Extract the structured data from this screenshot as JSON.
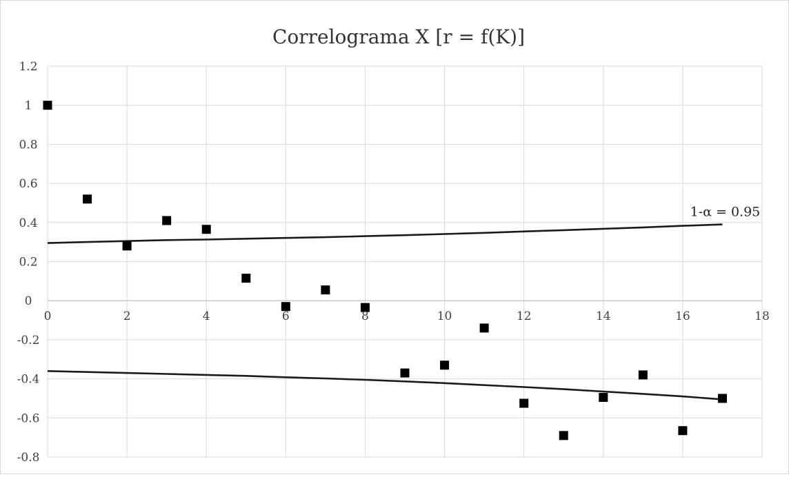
{
  "chart_data": {
    "type": "scatter",
    "title": "Correlograma X [r = f(K)]",
    "xlabel": "",
    "ylabel": "",
    "xlim": [
      0,
      18
    ],
    "ylim": [
      -0.8,
      1.2
    ],
    "xticks": [
      0,
      2,
      4,
      6,
      8,
      10,
      12,
      14,
      16,
      18
    ],
    "yticks": [
      -0.8,
      -0.6,
      -0.4,
      -0.2,
      0,
      0.2,
      0.4,
      0.6,
      0.8,
      1,
      1.2
    ],
    "ytick_labels": [
      "-0.8",
      "-0.6",
      "-0.4",
      "-0.2",
      "0",
      "0.2",
      "0.4",
      "0.6",
      "0.8",
      "1",
      "1.2"
    ],
    "grid": true,
    "legend": "none",
    "marker_color": "#000000",
    "line_color": "#1a1a1a",
    "series": [
      {
        "marker": "square",
        "x": [
          0,
          1,
          2,
          3,
          4,
          5,
          6,
          7,
          8,
          9,
          10,
          11,
          12,
          13,
          14,
          15,
          16,
          17
        ],
        "y": [
          1.0,
          0.52,
          0.28,
          0.41,
          0.365,
          0.115,
          -0.03,
          0.055,
          -0.035,
          -0.37,
          -0.33,
          -0.14,
          -0.525,
          -0.69,
          -0.495,
          -0.38,
          -0.665,
          -0.5
        ]
      },
      {
        "marker": "none",
        "x": [
          0,
          1,
          2,
          3,
          4,
          5,
          6,
          7,
          8,
          9,
          10,
          11,
          12,
          13,
          14,
          15,
          16,
          17
        ],
        "y": [
          0.295,
          0.3,
          0.305,
          0.31,
          0.313,
          0.317,
          0.321,
          0.325,
          0.33,
          0.335,
          0.341,
          0.347,
          0.354,
          0.361,
          0.368,
          0.375,
          0.383,
          0.39
        ]
      },
      {
        "marker": "none",
        "x": [
          0,
          1,
          2,
          3,
          4,
          5,
          6,
          7,
          8,
          9,
          10,
          11,
          12,
          13,
          14,
          15,
          16,
          17
        ],
        "y": [
          -0.36,
          -0.365,
          -0.37,
          -0.375,
          -0.38,
          -0.385,
          -0.392,
          -0.398,
          -0.405,
          -0.413,
          -0.422,
          -0.432,
          -0.442,
          -0.453,
          -0.465,
          -0.477,
          -0.49,
          -0.505
        ]
      }
    ],
    "annotations": [
      {
        "text": "1-α = 0.95",
        "x": 17,
        "y": 0.39
      }
    ]
  }
}
